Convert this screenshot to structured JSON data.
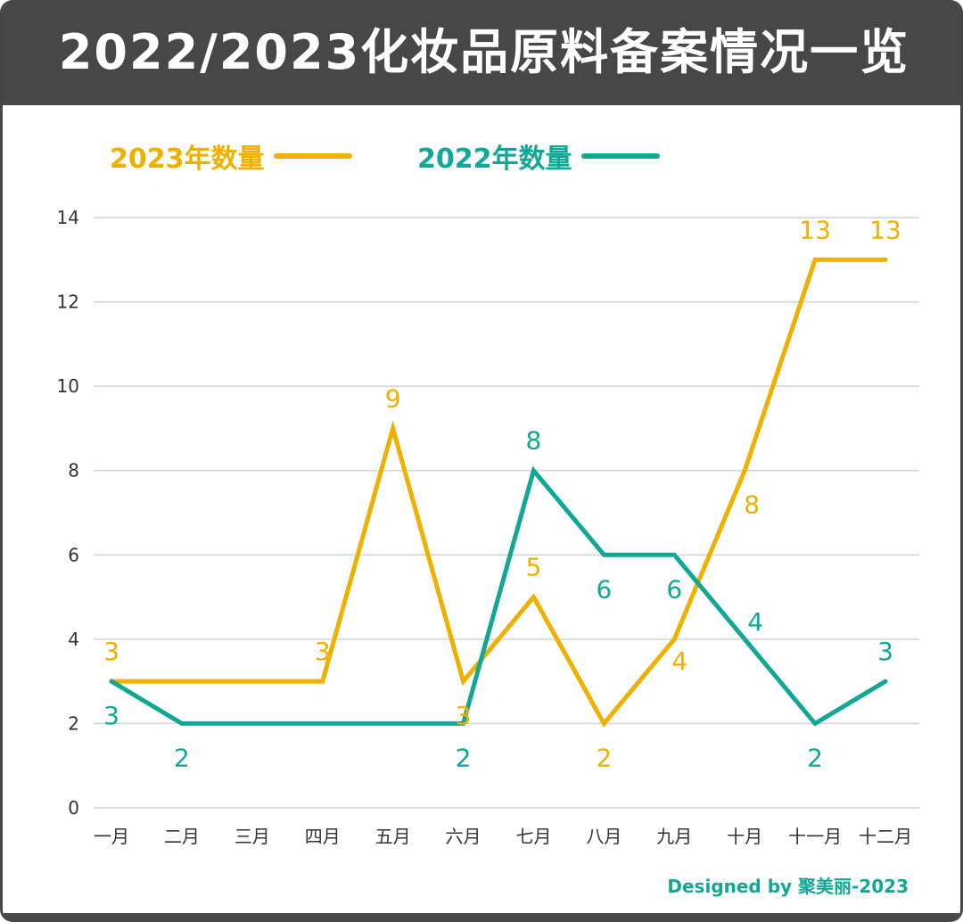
{
  "title": "2022/2023化妆品原料备案情况一览",
  "credit": "Designed by 聚美丽-2023",
  "colors": {
    "y2023": "#f0b000",
    "y2022": "#10a894",
    "header": "#474747",
    "grid": "#d4d4d4"
  },
  "chart_data": {
    "type": "line",
    "categories": [
      "一月",
      "二月",
      "三月",
      "四月",
      "五月",
      "六月",
      "七月",
      "八月",
      "九月",
      "十月",
      "十一月",
      "十二月"
    ],
    "series": [
      {
        "name": "2023年数量",
        "values": [
          3,
          3,
          3,
          3,
          9,
          3,
          5,
          2,
          4,
          8,
          13,
          13
        ],
        "labels": [
          "3",
          "",
          "",
          "3",
          "9",
          "3",
          "5",
          "2",
          "4",
          "8",
          "13",
          "13"
        ]
      },
      {
        "name": "2022年数量",
        "values": [
          3,
          2,
          2,
          2,
          2,
          2,
          8,
          6,
          6,
          4,
          2,
          3
        ],
        "labels": [
          "3",
          "2",
          "",
          "",
          "",
          "2",
          "8",
          "6",
          "6",
          "4",
          "2",
          "3"
        ]
      }
    ],
    "yticks": [
      "0",
      "2",
      "4",
      "6",
      "8",
      "10",
      "12",
      "14"
    ],
    "ylim": [
      0,
      14
    ],
    "grid": true,
    "legend_position": "top-left"
  }
}
